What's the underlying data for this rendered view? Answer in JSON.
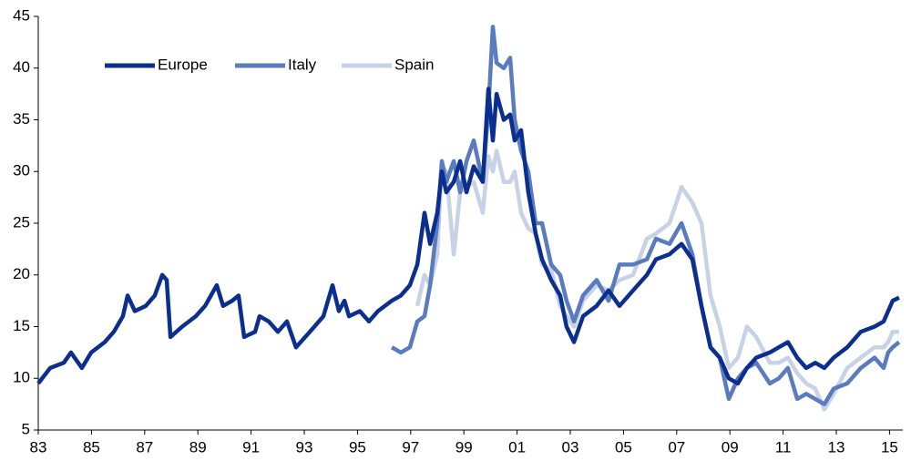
{
  "chart_data": {
    "type": "line",
    "legend": "upper left",
    "xlim": [
      1983,
      2015.5
    ],
    "ylim": [
      5,
      45
    ],
    "xticks": [
      {
        "value": 1983,
        "label": "83"
      },
      {
        "value": 1985,
        "label": "85"
      },
      {
        "value": 1987,
        "label": "87"
      },
      {
        "value": 1989,
        "label": "89"
      },
      {
        "value": 1991,
        "label": "91"
      },
      {
        "value": 1993,
        "label": "93"
      },
      {
        "value": 1995,
        "label": "95"
      },
      {
        "value": 1997,
        "label": "97"
      },
      {
        "value": 1999,
        "label": "99"
      },
      {
        "value": 2001,
        "label": "01"
      },
      {
        "value": 2003,
        "label": "03"
      },
      {
        "value": 2005,
        "label": "05"
      },
      {
        "value": 2007,
        "label": "07"
      },
      {
        "value": 2009,
        "label": "09"
      },
      {
        "value": 2011,
        "label": "11"
      },
      {
        "value": 2013,
        "label": "13"
      },
      {
        "value": 2015,
        "label": "15"
      }
    ],
    "yticks": [
      5,
      10,
      15,
      20,
      25,
      30,
      35,
      40,
      45
    ],
    "x": [
      1983.0,
      1983.45,
      1983.96,
      1984.23,
      1984.64,
      1984.99,
      1985.5,
      1985.84,
      1986.18,
      1986.36,
      1986.63,
      1987.04,
      1987.38,
      1987.66,
      1987.83,
      1987.97,
      1988.41,
      1988.92,
      1989.27,
      1989.71,
      1989.95,
      1990.29,
      1990.53,
      1990.74,
      1991.15,
      1991.32,
      1991.66,
      1992.01,
      1992.35,
      1992.69,
      1993.21,
      1993.72,
      1994.06,
      1994.3,
      1994.51,
      1994.68,
      1995.09,
      1995.43,
      1995.77,
      1996.29,
      1996.63,
      1996.97,
      1997.25,
      1997.52,
      1997.73,
      1998.0,
      1998.17,
      1998.34,
      1998.62,
      1998.86,
      1999.1,
      1999.37,
      1999.71,
      1999.92,
      2000.09,
      2000.23,
      2000.5,
      2000.74,
      2000.91,
      2001.15,
      2001.42,
      2001.7,
      2001.94,
      2002.28,
      2002.62,
      2002.86,
      2003.14,
      2003.48,
      2003.99,
      2004.44,
      2004.85,
      2005.36,
      2005.88,
      2006.22,
      2006.73,
      2007.18,
      2007.59,
      2007.93,
      2008.27,
      2008.62,
      2008.96,
      2009.3,
      2009.64,
      2009.99,
      2010.5,
      2010.84,
      2011.18,
      2011.53,
      2011.87,
      2012.21,
      2012.55,
      2012.9,
      2013.41,
      2013.92,
      2014.44,
      2014.78,
      2014.95,
      2015.12,
      2015.36
    ],
    "series": [
      {
        "name": "Europe",
        "color": "#0b2f8f",
        "values": [
          9.5,
          11,
          11.5,
          12.5,
          11,
          12.5,
          13.5,
          14.5,
          16,
          18,
          16.5,
          17,
          18,
          20,
          19.5,
          14,
          15,
          16,
          17,
          19,
          17,
          17.5,
          18,
          14,
          14.5,
          16,
          15.5,
          14.5,
          15.5,
          13,
          14.5,
          16,
          19,
          16.5,
          17.5,
          16,
          16.5,
          15.5,
          16.5,
          17.5,
          18,
          19,
          21,
          26,
          23,
          26,
          30,
          28,
          29,
          31,
          28,
          30.5,
          29,
          38,
          33,
          37.5,
          35,
          35.5,
          33,
          34,
          28,
          24,
          21.5,
          19.5,
          18,
          15,
          13.5,
          16,
          17,
          18.5,
          17,
          18.5,
          20,
          21.5,
          22,
          23,
          21.5,
          17,
          13,
          12,
          10,
          9.5,
          11,
          12,
          12.5,
          13,
          13.5,
          12,
          11,
          11.5,
          11,
          12,
          13,
          14.5,
          15,
          15.5,
          16.5,
          17.5,
          17.8
        ]
      },
      {
        "name": "Italy",
        "color": "#5b7bbf",
        "values": [
          null,
          null,
          null,
          null,
          null,
          null,
          null,
          null,
          null,
          null,
          null,
          null,
          null,
          null,
          null,
          null,
          null,
          null,
          null,
          null,
          null,
          null,
          null,
          null,
          null,
          null,
          null,
          null,
          null,
          null,
          null,
          null,
          null,
          null,
          null,
          null,
          null,
          null,
          null,
          13,
          12.5,
          13,
          15.5,
          16,
          19,
          25,
          31,
          29,
          31,
          28,
          31,
          33,
          29,
          36,
          44,
          40.5,
          40,
          41,
          35,
          32,
          30,
          25,
          25,
          21,
          20,
          17.5,
          15.5,
          18,
          19.5,
          17.5,
          21,
          21,
          21.5,
          23.5,
          23,
          25,
          22,
          17,
          13,
          12,
          8,
          10,
          11,
          11.5,
          9.5,
          10,
          11,
          8,
          8.5,
          8,
          7.5,
          9,
          9.5,
          11,
          12,
          11,
          12.5,
          13,
          13.5
        ]
      },
      {
        "name": "Spain",
        "color": "#c8d2e6",
        "values": [
          null,
          null,
          null,
          null,
          null,
          null,
          null,
          null,
          null,
          null,
          null,
          null,
          null,
          null,
          null,
          null,
          null,
          null,
          null,
          null,
          null,
          null,
          null,
          null,
          null,
          null,
          null,
          null,
          null,
          null,
          null,
          null,
          null,
          null,
          null,
          null,
          null,
          null,
          null,
          null,
          null,
          null,
          17,
          20,
          19,
          22,
          30.5,
          30,
          22,
          28,
          28.5,
          29,
          26,
          31.5,
          30,
          32,
          29,
          29,
          30,
          26,
          24.5,
          24,
          21,
          20.5,
          17,
          16,
          15,
          17.5,
          19,
          18.5,
          19.5,
          20,
          23.5,
          24,
          25,
          28.5,
          27,
          25,
          18,
          15,
          11,
          12,
          15,
          14,
          11.5,
          11.5,
          12,
          10.5,
          9.5,
          9,
          7,
          8.5,
          11,
          12,
          13,
          13,
          13.5,
          14.5,
          14.5
        ]
      }
    ]
  }
}
